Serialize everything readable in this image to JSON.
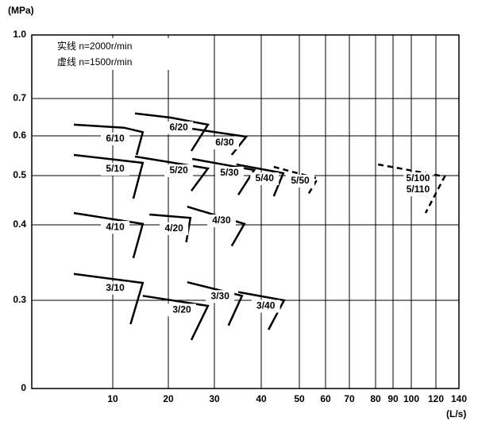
{
  "chart_data": {
    "type": "line",
    "y_label": "(MPa)",
    "x_label": "(L/s)",
    "legend_lines": [
      "实线  n=2000r/min",
      "虚线  n=1500r/min"
    ],
    "xlim": [
      0,
      140
    ],
    "xticks": [
      10,
      20,
      30,
      40,
      50,
      60,
      70,
      80,
      90,
      100,
      120,
      140
    ],
    "ylim": [
      0,
      1
    ],
    "yticks": [
      0,
      0.3,
      0.4,
      0.5,
      0.6,
      0.7,
      {
        "value": 1,
        "label": "1.0"
      }
    ],
    "grid": true,
    "series": [
      {
        "name": "6/10",
        "color": "#000000",
        "dashed": false,
        "x": [
          5.2,
          12,
          15.4,
          14.3
        ],
        "values": [
          0.63,
          0.622,
          0.61,
          0.552
        ]
      },
      {
        "name": "6/20",
        "color": "#000000",
        "dashed": false,
        "x": [
          14,
          20.5,
          28.6,
          25
        ],
        "values": [
          0.66,
          0.649,
          0.63,
          0.562
        ]
      },
      {
        "name": "6/30",
        "color": "#000000",
        "dashed": false,
        "x": [
          25.2,
          36.8,
          33.7
        ],
        "values": [
          0.619,
          0.598,
          0.552
        ]
      },
      {
        "name": "5/10",
        "color": "#000000",
        "dashed": false,
        "x": [
          5.2,
          15.4,
          13.7
        ],
        "values": [
          0.552,
          0.532,
          0.453
        ]
      },
      {
        "name": "5/20",
        "color": "#000000",
        "dashed": false,
        "x": [
          14,
          28.6,
          25
        ],
        "values": [
          0.548,
          0.518,
          0.469
        ]
      },
      {
        "name": "5/30",
        "color": "#000000",
        "dashed": false,
        "x": [
          25.2,
          38.5,
          35.1
        ],
        "values": [
          0.542,
          0.514,
          0.461
        ]
      },
      {
        "name": "5/40",
        "color": "#000000",
        "dashed": false,
        "x": [
          34.7,
          45.8,
          43.3
        ],
        "values": [
          0.528,
          0.506,
          0.458
        ]
      },
      {
        "name": "5/50",
        "color": "#000000",
        "dashed": true,
        "x": [
          43.3,
          57,
          53.3
        ],
        "values": [
          0.522,
          0.494,
          0.461
        ]
      },
      {
        "name": "5/100",
        "alt_name": "5/110",
        "color": "#000000",
        "dashed": true,
        "x": [
          81.4,
          127.6,
          111.6
        ],
        "values": [
          0.528,
          0.498,
          0.424
        ]
      },
      {
        "name": "4/10",
        "color": "#000000",
        "dashed": false,
        "x": [
          5.2,
          15.4,
          13.7
        ],
        "values": [
          0.424,
          0.402,
          0.356
        ]
      },
      {
        "name": "4/20",
        "color": "#000000",
        "dashed": false,
        "x": [
          16.6,
          24.8,
          23.9
        ],
        "values": [
          0.421,
          0.414,
          0.377
        ]
      },
      {
        "name": "4/30",
        "color": "#000000",
        "dashed": false,
        "x": [
          24.1,
          36.4,
          33.7
        ],
        "values": [
          0.437,
          0.402,
          0.372
        ]
      },
      {
        "name": "3/10",
        "color": "#000000",
        "dashed": false,
        "x": [
          5.2,
          15.4,
          13.2
        ],
        "values": [
          0.335,
          0.323,
          0.219
        ]
      },
      {
        "name": "3/20",
        "color": "#000000",
        "dashed": false,
        "x": [
          15.4,
          28.6,
          25
        ],
        "values": [
          0.306,
          0.281,
          0.165
        ]
      },
      {
        "name": "3/30",
        "color": "#000000",
        "dashed": false,
        "x": [
          24.1,
          35.9,
          33
        ],
        "values": [
          0.324,
          0.306,
          0.214
        ]
      },
      {
        "name": "3/40",
        "color": "#000000",
        "dashed": false,
        "x": [
          35.1,
          46,
          41.9
        ],
        "values": [
          0.311,
          0.3,
          0.2
        ]
      }
    ]
  }
}
